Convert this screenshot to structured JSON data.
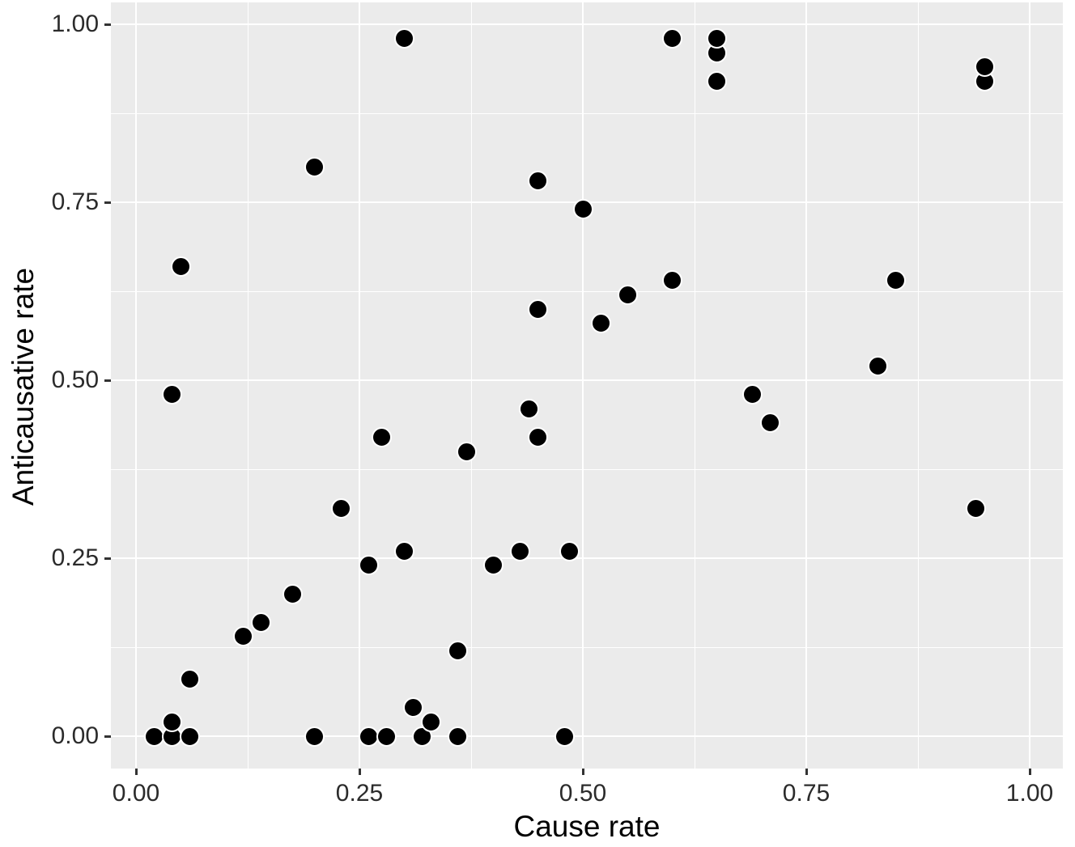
{
  "chart_data": {
    "type": "scatter",
    "title": "",
    "xlabel": "Cause rate",
    "ylabel": "Anticausative rate",
    "xlim": [
      0,
      1
    ],
    "ylim": [
      0,
      1
    ],
    "grid": "major+minor",
    "legend": "none",
    "x_tick_labels": [
      "0.00",
      "0.25",
      "0.50",
      "0.75",
      "1.00"
    ],
    "x_tick_values": [
      0,
      0.25,
      0.5,
      0.75,
      1.0
    ],
    "y_tick_labels": [
      "0.00",
      "0.25",
      "0.50",
      "0.75",
      "1.00"
    ],
    "y_tick_values": [
      0,
      0.25,
      0.5,
      0.75,
      1.0
    ],
    "x_minor_values": [
      0.125,
      0.375,
      0.625,
      0.875
    ],
    "y_minor_values": [
      0.125,
      0.375,
      0.625,
      0.875
    ],
    "points": [
      [
        0.02,
        0.0
      ],
      [
        0.04,
        0.0
      ],
      [
        0.04,
        0.02
      ],
      [
        0.06,
        0.0
      ],
      [
        0.06,
        0.08
      ],
      [
        0.04,
        0.48
      ],
      [
        0.05,
        0.66
      ],
      [
        0.12,
        0.14
      ],
      [
        0.14,
        0.16
      ],
      [
        0.175,
        0.2
      ],
      [
        0.2,
        0.0
      ],
      [
        0.2,
        0.8
      ],
      [
        0.23,
        0.32
      ],
      [
        0.26,
        0.0
      ],
      [
        0.26,
        0.24
      ],
      [
        0.275,
        0.42
      ],
      [
        0.28,
        0.0
      ],
      [
        0.3,
        0.26
      ],
      [
        0.3,
        0.98
      ],
      [
        0.31,
        0.04
      ],
      [
        0.32,
        0.0
      ],
      [
        0.33,
        0.02
      ],
      [
        0.36,
        0.0
      ],
      [
        0.36,
        0.12
      ],
      [
        0.37,
        0.4
      ],
      [
        0.4,
        0.24
      ],
      [
        0.43,
        0.26
      ],
      [
        0.44,
        0.46
      ],
      [
        0.45,
        0.42
      ],
      [
        0.45,
        0.6
      ],
      [
        0.45,
        0.78
      ],
      [
        0.48,
        0.0
      ],
      [
        0.485,
        0.26
      ],
      [
        0.5,
        0.74
      ],
      [
        0.52,
        0.58
      ],
      [
        0.55,
        0.62
      ],
      [
        0.6,
        0.64
      ],
      [
        0.6,
        0.98
      ],
      [
        0.65,
        0.92
      ],
      [
        0.65,
        0.96
      ],
      [
        0.65,
        0.98
      ],
      [
        0.69,
        0.48
      ],
      [
        0.71,
        0.44
      ],
      [
        0.83,
        0.52
      ],
      [
        0.85,
        0.64
      ],
      [
        0.94,
        0.32
      ],
      [
        0.95,
        0.92
      ],
      [
        0.95,
        0.94
      ]
    ]
  },
  "style": {
    "panel_background": "#EBEBEB",
    "grid_color": "#FFFFFF",
    "point_color": "#000000",
    "point_halo_color": "#FFFFFF",
    "tick_mark_color": "#333333",
    "tick_text_color": "#2B2B2B",
    "axis_title_color": "#000000"
  }
}
